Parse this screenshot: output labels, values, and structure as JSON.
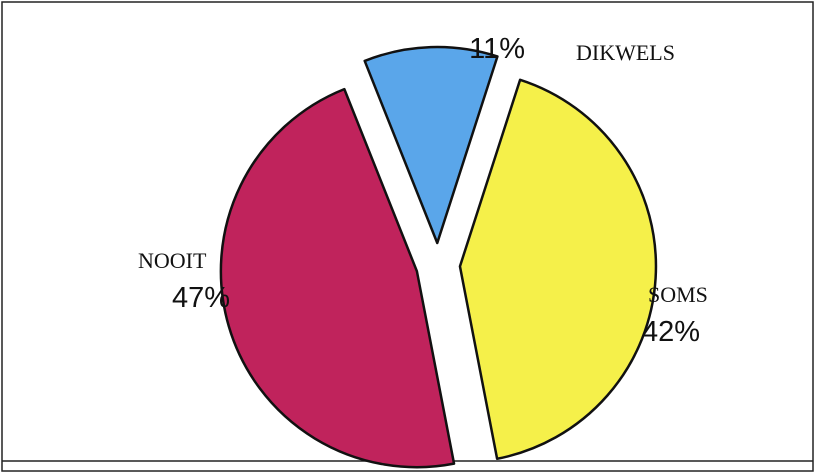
{
  "chart_data": {
    "type": "pie",
    "title": "",
    "categories": [
      "DIKWELS",
      "SOMS",
      "NOOIT"
    ],
    "values": [
      11,
      42,
      47
    ],
    "percent_labels": [
      "11%",
      "42%",
      "47%"
    ],
    "colors": [
      "#5aa6ea",
      "#f5f04a",
      "#c0235c"
    ],
    "exploded": true
  }
}
